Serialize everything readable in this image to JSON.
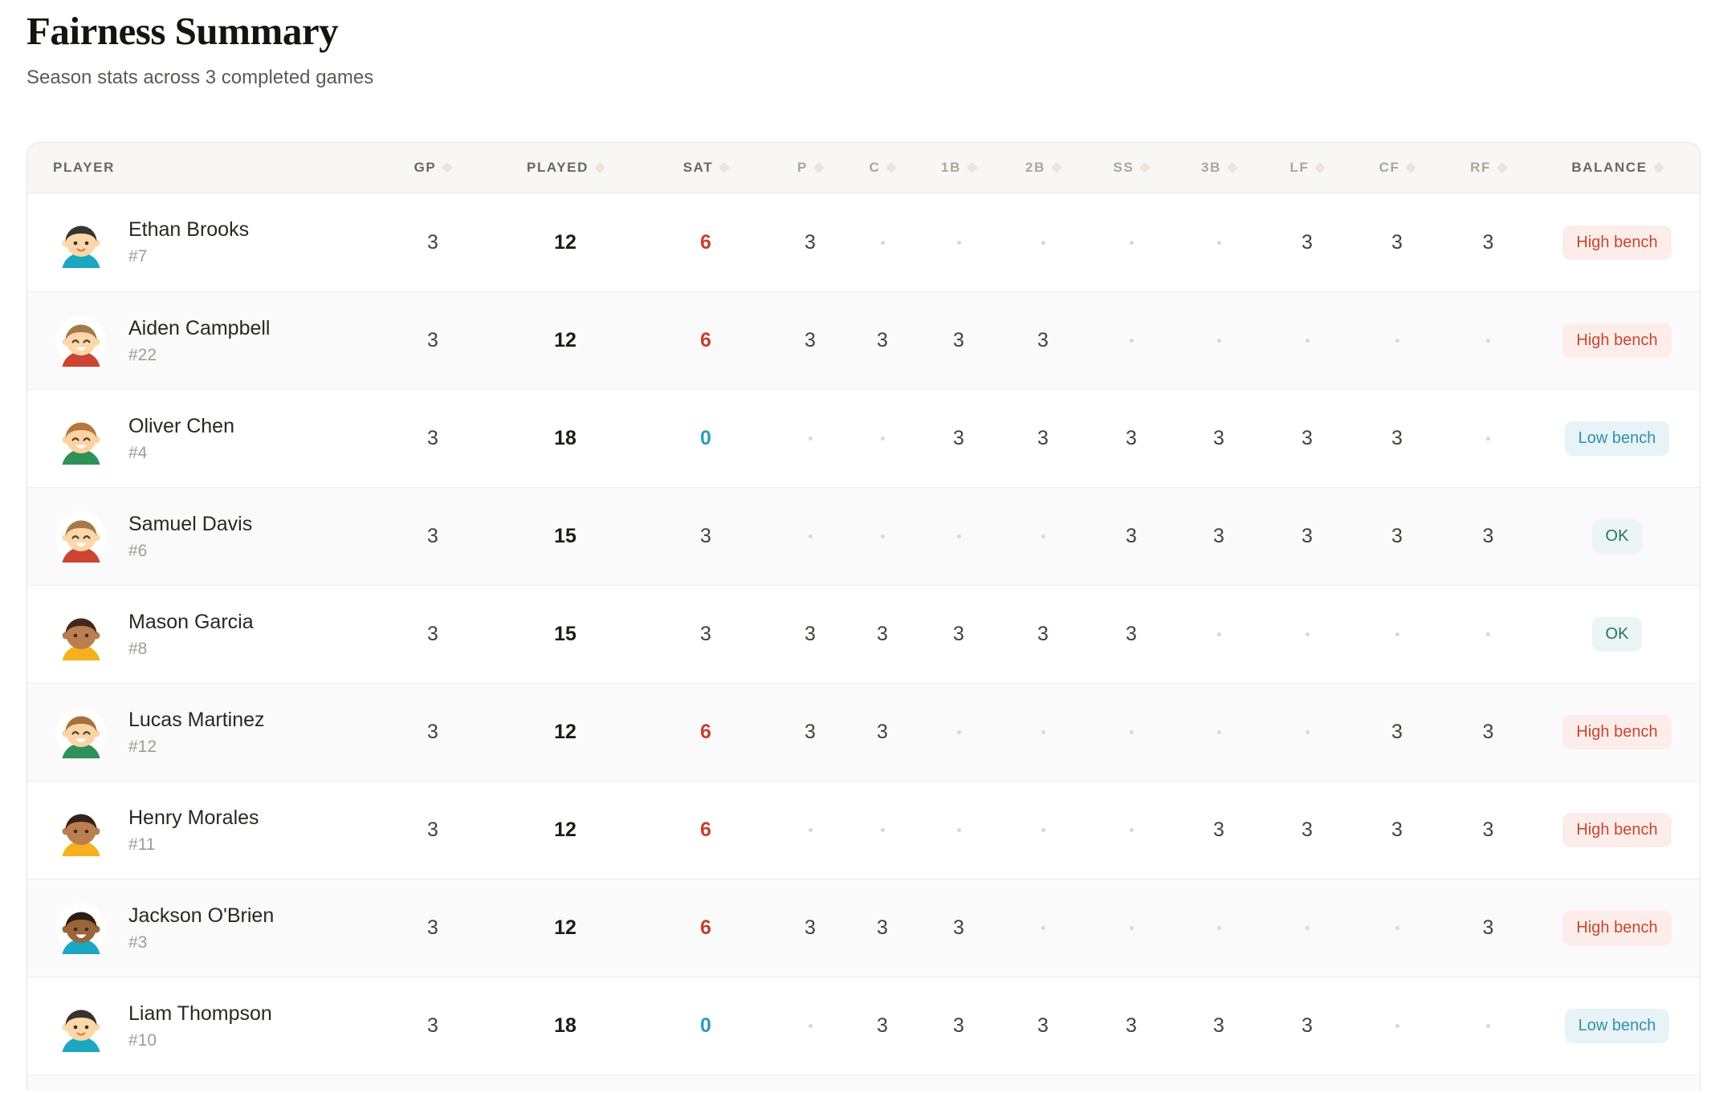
{
  "page": {
    "title": "Fairness Summary",
    "subtitle": "Season stats across 3 completed games"
  },
  "colors": {
    "sat_high": "#c4402e",
    "sat_low": "#2b9cbe",
    "badge_high_text": "#c7452f",
    "badge_high_bg": "#fcedea",
    "badge_low_text": "#2f90aa",
    "badge_low_bg": "#e7f3f7",
    "badge_ok_text": "#25784e",
    "badge_ok_bg": "#ebf4f6",
    "header_bg": "#f8f7f5"
  },
  "table": {
    "position_keys": [
      "p",
      "c",
      "1b",
      "2b",
      "ss",
      "3b",
      "lf",
      "cf",
      "rf"
    ],
    "columns": [
      {
        "key": "player",
        "label": "PLAYER",
        "emphasis": "dark",
        "sort": "asc"
      },
      {
        "key": "gp",
        "label": "GP",
        "emphasis": "dark",
        "sort": "none"
      },
      {
        "key": "played",
        "label": "PLAYED",
        "emphasis": "dark",
        "sort": "none"
      },
      {
        "key": "sat",
        "label": "SAT",
        "emphasis": "dark",
        "sort": "none"
      },
      {
        "key": "p",
        "label": "P",
        "emphasis": "light",
        "sort": "none"
      },
      {
        "key": "c",
        "label": "C",
        "emphasis": "light",
        "sort": "none"
      },
      {
        "key": "1b",
        "label": "1B",
        "emphasis": "light",
        "sort": "none"
      },
      {
        "key": "2b",
        "label": "2B",
        "emphasis": "light",
        "sort": "none"
      },
      {
        "key": "ss",
        "label": "SS",
        "emphasis": "light",
        "sort": "none"
      },
      {
        "key": "3b",
        "label": "3B",
        "emphasis": "light",
        "sort": "none"
      },
      {
        "key": "lf",
        "label": "LF",
        "emphasis": "light",
        "sort": "none"
      },
      {
        "key": "cf",
        "label": "CF",
        "emphasis": "light",
        "sort": "none"
      },
      {
        "key": "rf",
        "label": "RF",
        "emphasis": "light",
        "sort": "none"
      },
      {
        "key": "balance",
        "label": "BALANCE",
        "emphasis": "dark",
        "sort": "none"
      }
    ],
    "rows": [
      {
        "name": "Ethan Brooks",
        "number": "#7",
        "avatar": {
          "skin": "#fdd7a8",
          "hair": "#3a342f",
          "shirt": "#1ba7c0",
          "eyes": "dot",
          "mouth": "smile"
        },
        "gp": "3",
        "played": "12",
        "sat": "6",
        "sat_level": "high",
        "positions": {
          "p": "3",
          "c": null,
          "1b": null,
          "2b": null,
          "ss": null,
          "3b": null,
          "lf": "3",
          "cf": "3",
          "rf": "3"
        },
        "balance": {
          "label": "High bench",
          "level": "high"
        }
      },
      {
        "name": "Aiden Campbell",
        "number": "#22",
        "avatar": {
          "skin": "#fdd7a8",
          "hair": "#a57a4a",
          "shirt": "#cd4433",
          "eyes": "happy",
          "mouth": "open"
        },
        "gp": "3",
        "played": "12",
        "sat": "6",
        "sat_level": "high",
        "positions": {
          "p": "3",
          "c": "3",
          "1b": "3",
          "2b": "3",
          "ss": null,
          "3b": null,
          "lf": null,
          "cf": null,
          "rf": null
        },
        "balance": {
          "label": "High bench",
          "level": "high"
        }
      },
      {
        "name": "Oliver Chen",
        "number": "#4",
        "avatar": {
          "skin": "#fdd3a4",
          "hair": "#b5783a",
          "shirt": "#2f9158",
          "eyes": "happy",
          "mouth": "open"
        },
        "gp": "3",
        "played": "18",
        "sat": "0",
        "sat_level": "low",
        "positions": {
          "p": null,
          "c": null,
          "1b": "3",
          "2b": "3",
          "ss": "3",
          "3b": "3",
          "lf": "3",
          "cf": "3",
          "rf": null
        },
        "balance": {
          "label": "Low bench",
          "level": "low"
        }
      },
      {
        "name": "Samuel Davis",
        "number": "#6",
        "avatar": {
          "skin": "#fdd7a8",
          "hair": "#a57a4a",
          "shirt": "#cd4433",
          "eyes": "happy",
          "mouth": "open"
        },
        "gp": "3",
        "played": "15",
        "sat": "3",
        "sat_level": "mid",
        "positions": {
          "p": null,
          "c": null,
          "1b": null,
          "2b": null,
          "ss": "3",
          "3b": "3",
          "lf": "3",
          "cf": "3",
          "rf": "3"
        },
        "balance": {
          "label": "OK",
          "level": "ok"
        }
      },
      {
        "name": "Mason Garcia",
        "number": "#8",
        "avatar": {
          "skin": "#bb7e51",
          "hair": "#42291c",
          "shirt": "#f6b01e",
          "eyes": "dot",
          "mouth": "smile"
        },
        "gp": "3",
        "played": "15",
        "sat": "3",
        "sat_level": "mid",
        "positions": {
          "p": "3",
          "c": "3",
          "1b": "3",
          "2b": "3",
          "ss": "3",
          "3b": null,
          "lf": null,
          "cf": null,
          "rf": null
        },
        "balance": {
          "label": "OK",
          "level": "ok"
        }
      },
      {
        "name": "Lucas Martinez",
        "number": "#12",
        "avatar": {
          "skin": "#fbd4a6",
          "hair": "#a5713b",
          "shirt": "#2f9158",
          "eyes": "happy",
          "mouth": "open"
        },
        "gp": "3",
        "played": "12",
        "sat": "6",
        "sat_level": "high",
        "positions": {
          "p": "3",
          "c": "3",
          "1b": null,
          "2b": null,
          "ss": null,
          "3b": null,
          "lf": null,
          "cf": "3",
          "rf": "3"
        },
        "balance": {
          "label": "High bench",
          "level": "high"
        }
      },
      {
        "name": "Henry Morales",
        "number": "#11",
        "avatar": {
          "skin": "#bb7e51",
          "hair": "#35231a",
          "shirt": "#f6b01e",
          "eyes": "dot",
          "mouth": "smile"
        },
        "gp": "3",
        "played": "12",
        "sat": "6",
        "sat_level": "high",
        "positions": {
          "p": null,
          "c": null,
          "1b": null,
          "2b": null,
          "ss": null,
          "3b": "3",
          "lf": "3",
          "cf": "3",
          "rf": "3"
        },
        "balance": {
          "label": "High bench",
          "level": "high"
        }
      },
      {
        "name": "Jackson O'Brien",
        "number": "#3",
        "avatar": {
          "skin": "#9c6439",
          "hair": "#2e1d14",
          "shirt": "#1ba7c0",
          "eyes": "dot",
          "mouth": "open"
        },
        "gp": "3",
        "played": "12",
        "sat": "6",
        "sat_level": "high",
        "positions": {
          "p": "3",
          "c": "3",
          "1b": "3",
          "2b": null,
          "ss": null,
          "3b": null,
          "lf": null,
          "cf": null,
          "rf": "3"
        },
        "balance": {
          "label": "High bench",
          "level": "high"
        }
      },
      {
        "name": "Liam Thompson",
        "number": "#10",
        "avatar": {
          "skin": "#fcd7a9",
          "hair": "#37322f",
          "shirt": "#1ba7c0",
          "eyes": "dot",
          "mouth": "smile"
        },
        "gp": "3",
        "played": "18",
        "sat": "0",
        "sat_level": "low",
        "positions": {
          "p": null,
          "c": "3",
          "1b": "3",
          "2b": "3",
          "ss": "3",
          "3b": "3",
          "lf": "3",
          "cf": null,
          "rf": null
        },
        "balance": {
          "label": "Low bench",
          "level": "low"
        }
      }
    ]
  }
}
